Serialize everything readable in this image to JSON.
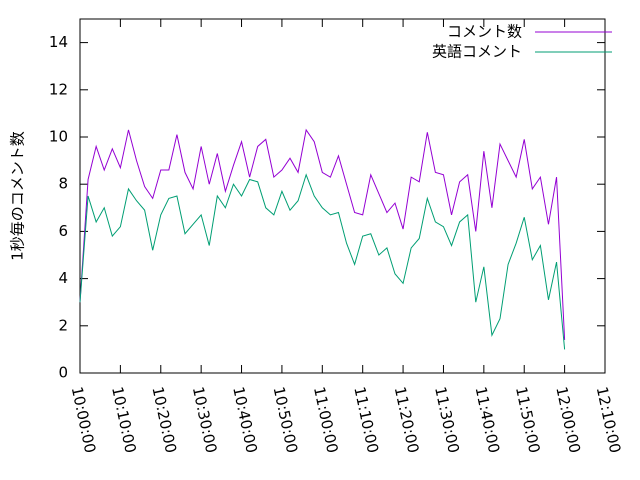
{
  "chart_data": {
    "type": "line",
    "y_label": "1秒毎のコメント数",
    "x": [
      "10:00:00",
      "10:02:00",
      "10:04:00",
      "10:06:00",
      "10:08:00",
      "10:10:00",
      "10:12:00",
      "10:14:00",
      "10:16:00",
      "10:18:00",
      "10:20:00",
      "10:22:00",
      "10:24:00",
      "10:26:00",
      "10:28:00",
      "10:30:00",
      "10:32:00",
      "10:34:00",
      "10:36:00",
      "10:38:00",
      "10:40:00",
      "10:42:00",
      "10:44:00",
      "10:46:00",
      "10:48:00",
      "10:50:00",
      "10:52:00",
      "10:54:00",
      "10:56:00",
      "10:58:00",
      "11:00:00",
      "11:02:00",
      "11:04:00",
      "11:06:00",
      "11:08:00",
      "11:10:00",
      "11:12:00",
      "11:14:00",
      "11:16:00",
      "11:18:00",
      "11:20:00",
      "11:22:00",
      "11:24:00",
      "11:26:00",
      "11:28:00",
      "11:30:00",
      "11:32:00",
      "11:34:00",
      "11:36:00",
      "11:38:00",
      "11:40:00",
      "11:42:00",
      "11:44:00",
      "11:46:00",
      "11:48:00",
      "11:50:00",
      "11:52:00",
      "11:54:00",
      "11:56:00",
      "11:58:00",
      "12:00:00"
    ],
    "series": [
      {
        "name": "コメント数",
        "color": "#9400d3",
        "values": [
          3.0,
          8.2,
          9.6,
          8.6,
          9.5,
          8.7,
          10.3,
          9.0,
          7.9,
          7.4,
          8.6,
          8.6,
          10.1,
          8.5,
          7.8,
          9.6,
          8.0,
          9.3,
          7.7,
          8.8,
          9.8,
          8.3,
          9.6,
          9.9,
          8.3,
          8.6,
          9.1,
          8.5,
          10.3,
          9.8,
          8.5,
          8.3,
          9.2,
          8.0,
          6.8,
          6.7,
          8.4,
          7.6,
          6.8,
          7.2,
          6.1,
          8.3,
          8.1,
          10.2,
          8.5,
          8.4,
          6.7,
          8.1,
          8.4,
          6.0,
          9.4,
          7.0,
          9.7,
          9.0,
          8.3,
          9.9,
          7.8,
          8.3,
          6.3,
          8.3,
          1.4
        ]
      },
      {
        "name": "英語コメント",
        "color": "#009e73",
        "values": [
          3.0,
          7.5,
          6.4,
          7.0,
          5.8,
          6.2,
          7.8,
          7.3,
          6.9,
          5.2,
          6.7,
          7.4,
          7.5,
          5.9,
          6.3,
          6.7,
          5.4,
          7.5,
          7.0,
          8.0,
          7.5,
          8.2,
          8.1,
          7.0,
          6.7,
          7.7,
          6.9,
          7.3,
          8.4,
          7.5,
          7.0,
          6.7,
          6.8,
          5.5,
          4.6,
          5.8,
          5.9,
          5.0,
          5.3,
          4.2,
          3.8,
          5.3,
          5.7,
          7.4,
          6.4,
          6.2,
          5.4,
          6.4,
          6.7,
          3.0,
          4.5,
          1.6,
          2.3,
          4.6,
          5.5,
          6.6,
          4.8,
          5.4,
          3.1,
          4.7,
          1.0
        ]
      }
    ],
    "xlim": [
      "10:00:00",
      "12:10:00"
    ],
    "xticks": [
      "10:00:00",
      "10:10:00",
      "10:20:00",
      "10:30:00",
      "10:40:00",
      "10:50:00",
      "11:00:00",
      "11:10:00",
      "11:20:00",
      "11:30:00",
      "11:40:00",
      "11:50:00",
      "12:00:00",
      "12:10:00"
    ],
    "ylim": [
      0,
      15
    ],
    "yticks": [
      0,
      2,
      4,
      6,
      8,
      10,
      12,
      14
    ],
    "grid": false,
    "legend": "top-right"
  }
}
